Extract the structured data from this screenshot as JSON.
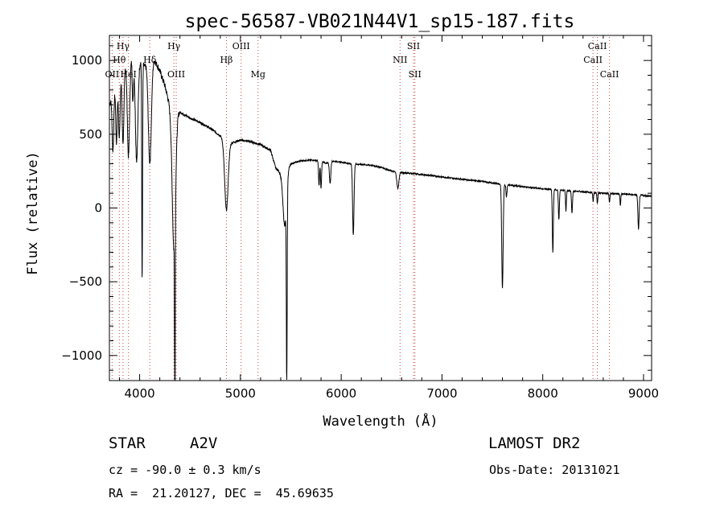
{
  "chart_data": {
    "type": "line",
    "title": "spec-56587-VB021N44V1_sp15-187.fits",
    "xlabel": "Wavelength (Å)",
    "ylabel": "Flux (relative)",
    "xlim": [
      3700,
      9080
    ],
    "ylim": [
      -1170,
      1170
    ],
    "x_ticks": [
      4000,
      5000,
      6000,
      7000,
      8000,
      9000
    ],
    "y_ticks": [
      -1000,
      -500,
      0,
      500,
      1000
    ],
    "continuum": [
      [
        3700,
        700
      ],
      [
        3750,
        800
      ],
      [
        3800,
        900
      ],
      [
        3850,
        960
      ],
      [
        3900,
        1000
      ],
      [
        3950,
        1040
      ],
      [
        4000,
        1000
      ],
      [
        4050,
        960
      ],
      [
        4100,
        1030
      ],
      [
        4150,
        1000
      ],
      [
        4200,
        930
      ],
      [
        4250,
        830
      ],
      [
        4300,
        690
      ],
      [
        4400,
        650
      ],
      [
        4500,
        610
      ],
      [
        4600,
        580
      ],
      [
        4700,
        540
      ],
      [
        4800,
        490
      ],
      [
        4850,
        450
      ],
      [
        4900,
        440
      ],
      [
        5000,
        460
      ],
      [
        5100,
        450
      ],
      [
        5200,
        430
      ],
      [
        5300,
        390
      ],
      [
        5350,
        270
      ],
      [
        5400,
        240
      ],
      [
        5500,
        300
      ],
      [
        5600,
        320
      ],
      [
        5700,
        325
      ],
      [
        5800,
        320
      ],
      [
        5850,
        300
      ],
      [
        5900,
        320
      ],
      [
        6000,
        310
      ],
      [
        6100,
        300
      ],
      [
        6200,
        295
      ],
      [
        6300,
        290
      ],
      [
        6400,
        275
      ],
      [
        6500,
        250
      ],
      [
        6600,
        240
      ],
      [
        6700,
        235
      ],
      [
        6800,
        225
      ],
      [
        6900,
        220
      ],
      [
        7000,
        210
      ],
      [
        7200,
        195
      ],
      [
        7400,
        180
      ],
      [
        7600,
        160
      ],
      [
        7800,
        145
      ],
      [
        8000,
        130
      ],
      [
        8200,
        120
      ],
      [
        8400,
        110
      ],
      [
        8600,
        100
      ],
      [
        8800,
        95
      ],
      [
        9000,
        85
      ],
      [
        9080,
        80
      ]
    ],
    "absorption_features": [
      {
        "center": 3735,
        "width": 8,
        "depth": 380
      },
      {
        "center": 3770,
        "width": 7,
        "depth": 400
      },
      {
        "center": 3798,
        "width": 8,
        "depth": 420
      },
      {
        "center": 3835,
        "width": 9,
        "depth": 500
      },
      {
        "center": 3889,
        "width": 11,
        "depth": 640
      },
      {
        "center": 3933,
        "width": 6,
        "depth": 300
      },
      {
        "center": 3970,
        "width": 13,
        "depth": 700
      },
      {
        "center": 4025,
        "width": 4,
        "depth": 1480
      },
      {
        "center": 4101,
        "width": 15,
        "depth": 720
      },
      {
        "center": 4340,
        "width": 17,
        "depth": 950
      },
      {
        "center": 4350,
        "width": 3,
        "depth": 1500
      },
      {
        "center": 4861,
        "width": 17,
        "depth": 460
      },
      {
        "center": 5440,
        "width": 18,
        "depth": 380
      },
      {
        "center": 5460,
        "width": 4,
        "depth": 1300
      },
      {
        "center": 5780,
        "width": 5,
        "depth": 170
      },
      {
        "center": 5800,
        "width": 5,
        "depth": 190
      },
      {
        "center": 5890,
        "width": 7,
        "depth": 150
      },
      {
        "center": 6120,
        "width": 7,
        "depth": 480
      },
      {
        "center": 6562,
        "width": 10,
        "depth": 110
      },
      {
        "center": 7600,
        "width": 7,
        "depth": 700
      },
      {
        "center": 7640,
        "width": 5,
        "depth": 80
      },
      {
        "center": 8100,
        "width": 5,
        "depth": 430
      },
      {
        "center": 8160,
        "width": 5,
        "depth": 200
      },
      {
        "center": 8230,
        "width": 4,
        "depth": 140
      },
      {
        "center": 8290,
        "width": 5,
        "depth": 150
      },
      {
        "center": 8500,
        "width": 4,
        "depth": 60
      },
      {
        "center": 8542,
        "width": 4,
        "depth": 70
      },
      {
        "center": 8662,
        "width": 4,
        "depth": 60
      },
      {
        "center": 8770,
        "width": 4,
        "depth": 80
      },
      {
        "center": 8950,
        "width": 6,
        "depth": 230
      }
    ],
    "line_markers": [
      {
        "label": "Hγ",
        "x": 3835,
        "row": 0
      },
      {
        "label": "Hθ",
        "x": 3798,
        "row": 1
      },
      {
        "label": "OII",
        "x": 3727,
        "row": 2
      },
      {
        "label": "HeI",
        "x": 3889,
        "row": 2
      },
      {
        "label": "Hδ",
        "x": 4101,
        "row": 1
      },
      {
        "label": "Hγ",
        "x": 4340,
        "row": 0
      },
      {
        "label": "OIII",
        "x": 4363,
        "row": 2
      },
      {
        "label": "OIII",
        "x": 5007,
        "row": 0
      },
      {
        "label": "Hβ",
        "x": 4861,
        "row": 1
      },
      {
        "label": "Mg",
        "x": 5175,
        "row": 2
      },
      {
        "label": "SII",
        "x": 6717,
        "row": 0
      },
      {
        "label": "NII",
        "x": 6584,
        "row": 1
      },
      {
        "label": "SII",
        "x": 6731,
        "row": 2
      },
      {
        "label": "CaII",
        "x": 8542,
        "row": 0
      },
      {
        "label": "CaII",
        "x": 8498,
        "row": 1
      },
      {
        "label": "CaII",
        "x": 8662,
        "row": 2
      }
    ],
    "grid": false,
    "legend": "none"
  },
  "info": {
    "obj_type": "STAR",
    "obj_class": "A2V",
    "survey": "LAMOST DR2",
    "cz": "cz = -90.0 ± 0.3 km/s",
    "obs_date": "Obs-Date: 20131021",
    "ra_dec": "RA =  21.20127, DEC =  45.69635"
  }
}
